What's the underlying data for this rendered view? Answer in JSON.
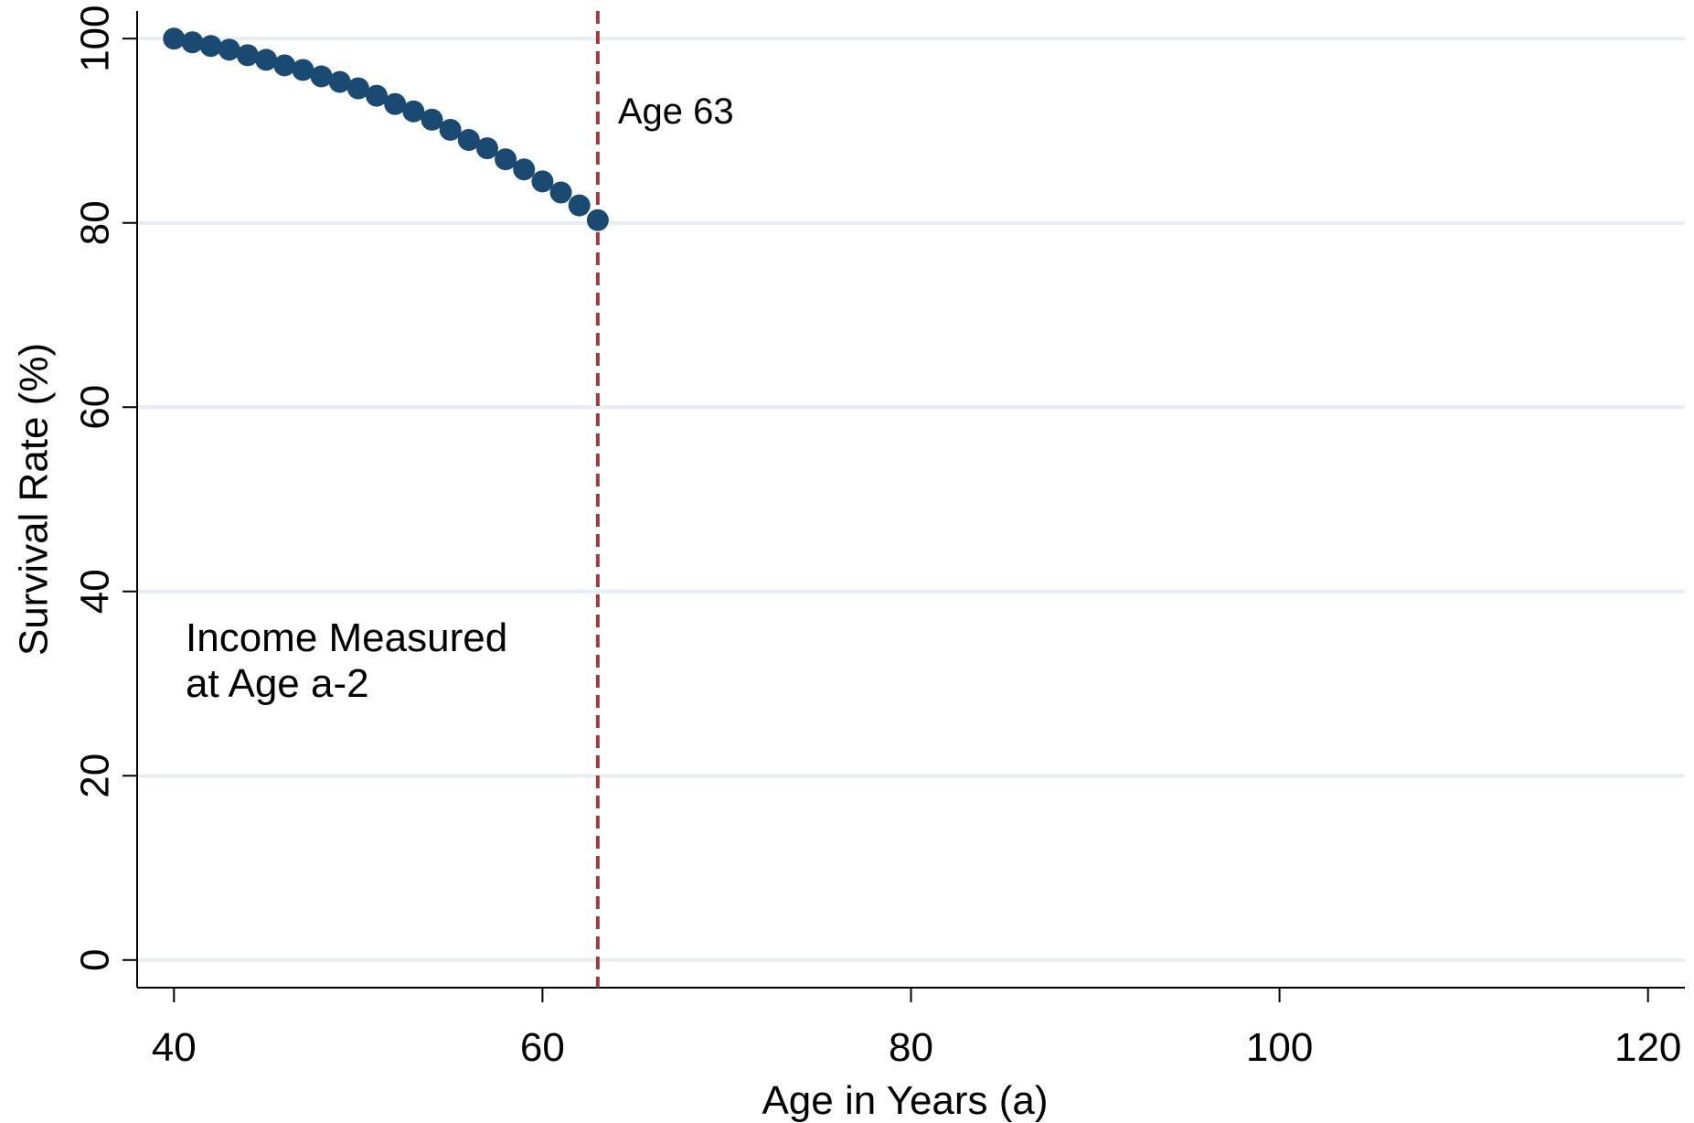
{
  "chart_data": {
    "type": "scatter",
    "title": "",
    "xlabel": "Age in Years (a)",
    "ylabel": "Survival Rate (%)",
    "xlim": [
      38,
      122
    ],
    "ylim": [
      -3,
      103
    ],
    "xticks": [
      40,
      60,
      80,
      100,
      120
    ],
    "yticks": [
      0,
      20,
      40,
      60,
      80,
      100
    ],
    "grid": "horizontal",
    "colors": {
      "points": "#1a4a72",
      "reference_line": "#a03a3e",
      "grid": "#e6eef2",
      "axis": "#000000"
    },
    "series": [
      {
        "x": [
          40,
          41,
          42,
          43,
          44,
          45,
          46,
          47,
          48,
          49,
          50,
          51,
          52,
          53,
          54,
          55,
          56,
          57,
          58,
          59,
          60,
          61,
          62,
          63
        ],
        "y": [
          100,
          99.6,
          99.2,
          98.8,
          98.2,
          97.7,
          97.1,
          96.6,
          95.9,
          95.3,
          94.6,
          93.8,
          92.9,
          92.1,
          91.2,
          90.1,
          89.0,
          88.1,
          86.9,
          85.8,
          84.5,
          83.3,
          81.9,
          80.3
        ]
      }
    ],
    "reference_line": {
      "x": 63,
      "style": "dashed",
      "label": "Age 63"
    },
    "annotation": {
      "lines": [
        "Income Measured",
        "at Age a-2"
      ]
    }
  }
}
